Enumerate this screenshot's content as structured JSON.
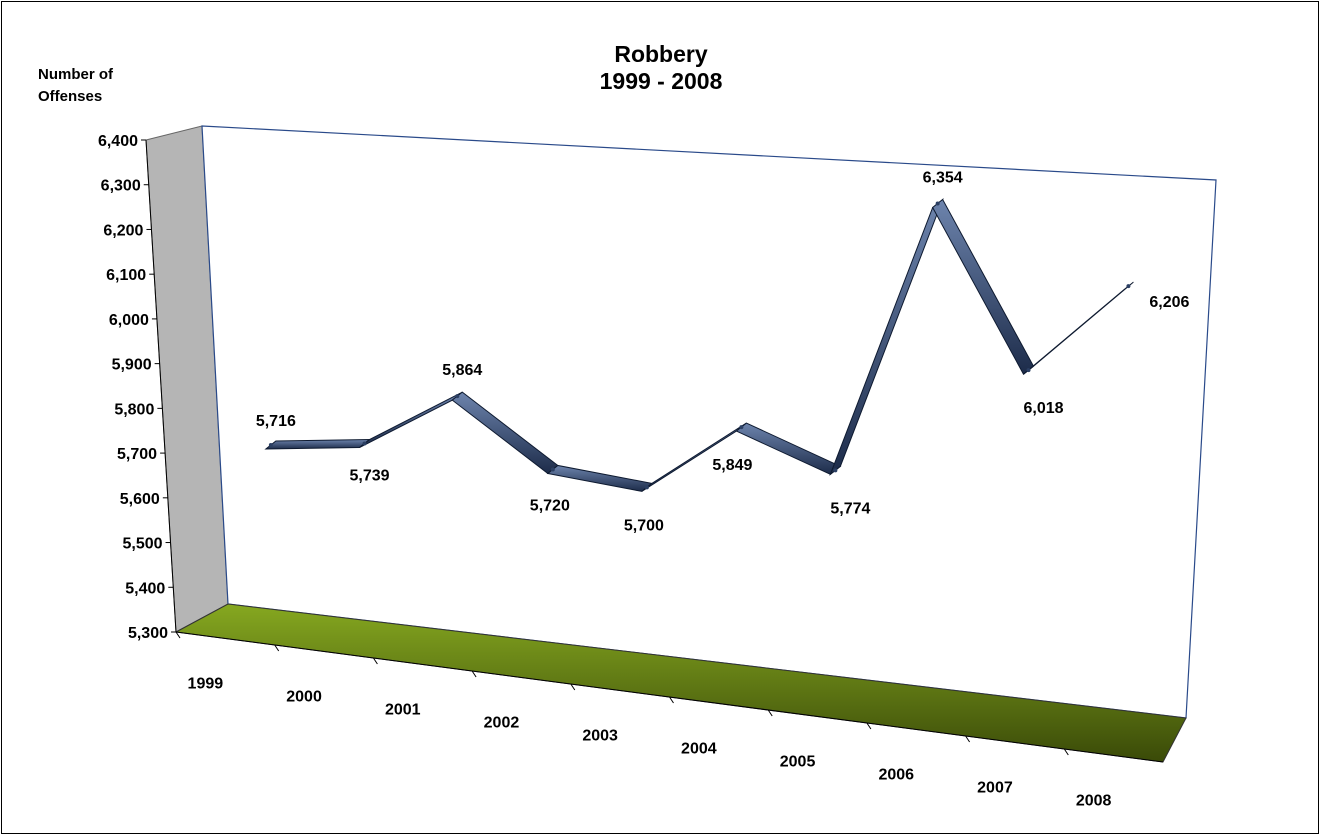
{
  "chart_data": {
    "type": "line",
    "title": "Robbery",
    "subtitle": "1999 - 2008",
    "ylabel": "Number of Offenses",
    "xlabel": "",
    "categories": [
      "1999",
      "2000",
      "2001",
      "2002",
      "2003",
      "2004",
      "2005",
      "2006",
      "2007",
      "2008"
    ],
    "series": [
      {
        "values": [
          5716,
          5739,
          5864,
          5720,
          5700,
          5849,
          5774,
          6354,
          6018,
          6206
        ]
      }
    ],
    "data_labels": [
      "5,716",
      "5,739",
      "5,864",
      "5,720",
      "5,700",
      "5,849",
      "5,774",
      "6,354",
      "6,018",
      "6,206"
    ],
    "yticks": [
      "5,300",
      "5,400",
      "5,500",
      "5,600",
      "5,700",
      "5,800",
      "5,900",
      "6,000",
      "6,100",
      "6,200",
      "6,300",
      "6,400"
    ],
    "ylim": [
      5300,
      6400
    ],
    "grid": false,
    "legend": "none",
    "colors": {
      "line": "#2b3f63",
      "line_light": "#5a7199",
      "floor": "#7a9a1a",
      "floor_dark": "#2e3a05",
      "wall": "#b5b5b5",
      "frame": "#2a4a8a"
    }
  }
}
